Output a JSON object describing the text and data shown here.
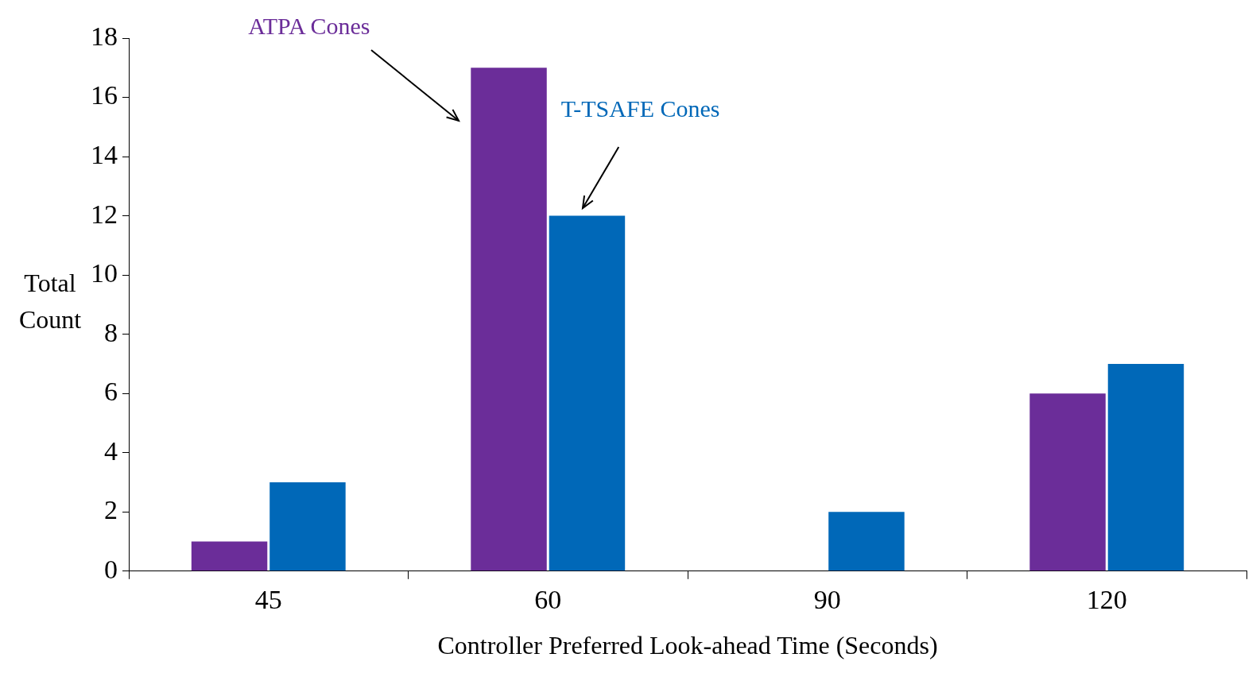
{
  "chart_data": {
    "type": "bar",
    "xlabel": "Controller Preferred Look-ahead Time (Seconds)",
    "ylabel": "Total Count",
    "categories": [
      "45",
      "60",
      "90",
      "120"
    ],
    "series": [
      {
        "name": "ATPA Cones",
        "color": "#6b2d99",
        "values": [
          1,
          17,
          0,
          6
        ]
      },
      {
        "name": "T-TSAFE Cones",
        "color": "#0068b8",
        "values": [
          3,
          12,
          2,
          7
        ]
      }
    ],
    "ylim": [
      0,
      18
    ],
    "yticks": [
      0,
      2,
      4,
      6,
      8,
      10,
      12,
      14,
      16,
      18
    ],
    "grid": false,
    "legend": false
  }
}
